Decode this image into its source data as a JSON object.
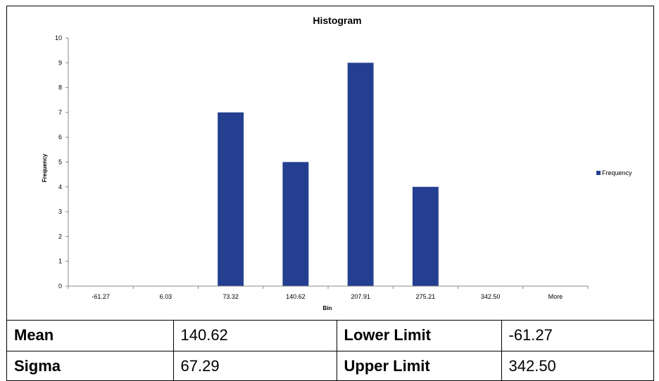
{
  "chart_data": {
    "type": "bar",
    "title": "Histogram",
    "xlabel": "Bin",
    "ylabel": "Frequency",
    "categories": [
      "-61.27",
      "6.03",
      "73.32",
      "140.62",
      "207.91",
      "275.21",
      "342.50",
      "More"
    ],
    "series": [
      {
        "name": "Frequency",
        "values": [
          0,
          0,
          7,
          5,
          9,
          4,
          0,
          0
        ]
      }
    ],
    "ylim": [
      0,
      10
    ],
    "yticks": [
      "0",
      "1",
      "2",
      "3",
      "4",
      "5",
      "6",
      "7",
      "8",
      "9",
      "10"
    ],
    "legend_position": "right",
    "grid": false,
    "bar_color": "#243f8f"
  },
  "stats": {
    "mean_label": "Mean",
    "mean_value": "140.62",
    "sigma_label": "Sigma",
    "sigma_value": "67.29",
    "lower_label": "Lower Limit",
    "lower_value": "-61.27",
    "upper_label": "Upper Limit",
    "upper_value": "342.50"
  }
}
